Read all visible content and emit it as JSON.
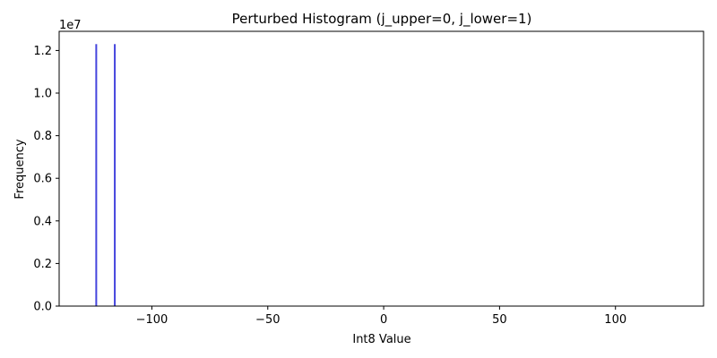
{
  "chart_data": {
    "type": "bar",
    "title": "Perturbed Histogram (j_upper=0, j_lower=1)",
    "xlabel": "Int8 Value",
    "ylabel": "Frequency",
    "y_offset_label": "1e7",
    "xlim": [
      -140,
      138
    ],
    "ylim": [
      0,
      12900000
    ],
    "x_ticks": [
      -100,
      -50,
      0,
      50,
      100
    ],
    "x_tick_labels": [
      "−100",
      "−50",
      "0",
      "50",
      "100"
    ],
    "y_ticks": [
      0,
      2000000,
      4000000,
      6000000,
      8000000,
      10000000,
      12000000
    ],
    "y_tick_labels": [
      "0.0",
      "0.2",
      "0.4",
      "0.6",
      "0.8",
      "1.0",
      "1.2"
    ],
    "bar_color": "#4444dd",
    "bars": [
      {
        "x": -124,
        "value": 12300000
      },
      {
        "x": -116,
        "value": 12300000
      }
    ],
    "grid": false,
    "legend": "none"
  }
}
